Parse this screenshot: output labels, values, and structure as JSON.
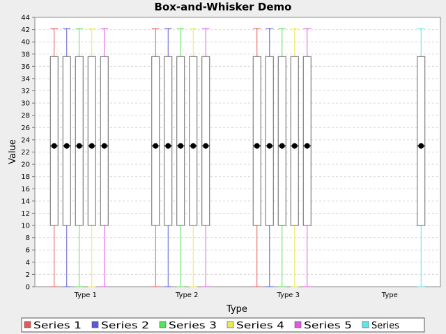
{
  "chart_data": {
    "type": "box",
    "title": "Box-and-Whisker Demo",
    "xlabel": "Type",
    "ylabel": "Value",
    "ylim": [
      0,
      44
    ],
    "ytick_step": 2,
    "grid": true,
    "legend_position": "bottom",
    "categories": [
      "Type 1",
      "Type 2",
      "Type 3",
      "Type"
    ],
    "series": [
      {
        "name": "Series 1",
        "color": "#e05a5a",
        "categories": [
          "Type 1",
          "Type 2",
          "Type 3"
        ]
      },
      {
        "name": "Series 2",
        "color": "#5a5ad8",
        "categories": [
          "Type 1",
          "Type 2",
          "Type 3"
        ]
      },
      {
        "name": "Series 3",
        "color": "#5ae05a",
        "categories": [
          "Type 1",
          "Type 2",
          "Type 3"
        ]
      },
      {
        "name": "Series 4",
        "color": "#e8e85a",
        "categories": [
          "Type 1",
          "Type 2",
          "Type 3"
        ]
      },
      {
        "name": "Series 5",
        "color": "#e05ae0",
        "categories": [
          "Type 1",
          "Type 2",
          "Type 3"
        ]
      },
      {
        "name": "Series",
        "color": "#5ae8e8",
        "categories": [
          "Type"
        ]
      }
    ],
    "box_stats": {
      "whisker_low": 0,
      "q1": 10,
      "median": 23,
      "q3": 37.6,
      "whisker_high": 42.2,
      "mean": 23
    }
  }
}
